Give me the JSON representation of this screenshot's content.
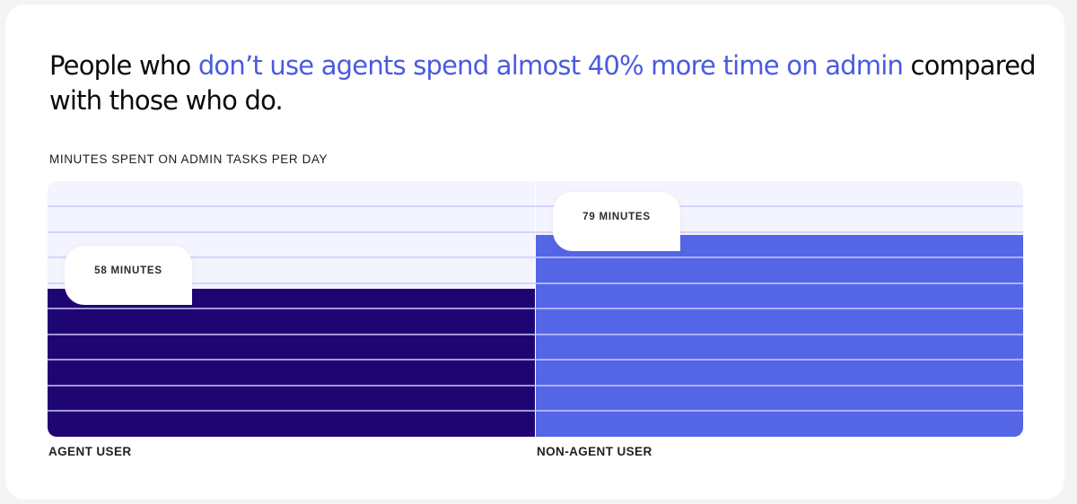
{
  "headline": {
    "part1": "People who ",
    "highlight": "don’t use agents spend almost 40% more time on admin",
    "part2": " compared with those who do.",
    "highlight_color": "#4a5ae2"
  },
  "chart_data": {
    "type": "bar",
    "title": "People who don’t use agents spend almost 40% more time on admin compared with those who do.",
    "subtitle": "MINUTES SPENT ON ADMIN TASKS PER DAY",
    "categories": [
      "AGENT USER",
      "NON-AGENT USER"
    ],
    "values": [
      58,
      79
    ],
    "data_labels": [
      "58 MINUTES",
      "79 MINUTES"
    ],
    "colors": [
      "#1f0572",
      "#5466e6"
    ],
    "xlabel": "",
    "ylabel": "Minutes spent on admin tasks per day",
    "ylim": [
      0,
      100
    ],
    "grid": true,
    "grid_step": 10,
    "legend": "none"
  },
  "plot": {
    "background": "#f3f4fe"
  }
}
